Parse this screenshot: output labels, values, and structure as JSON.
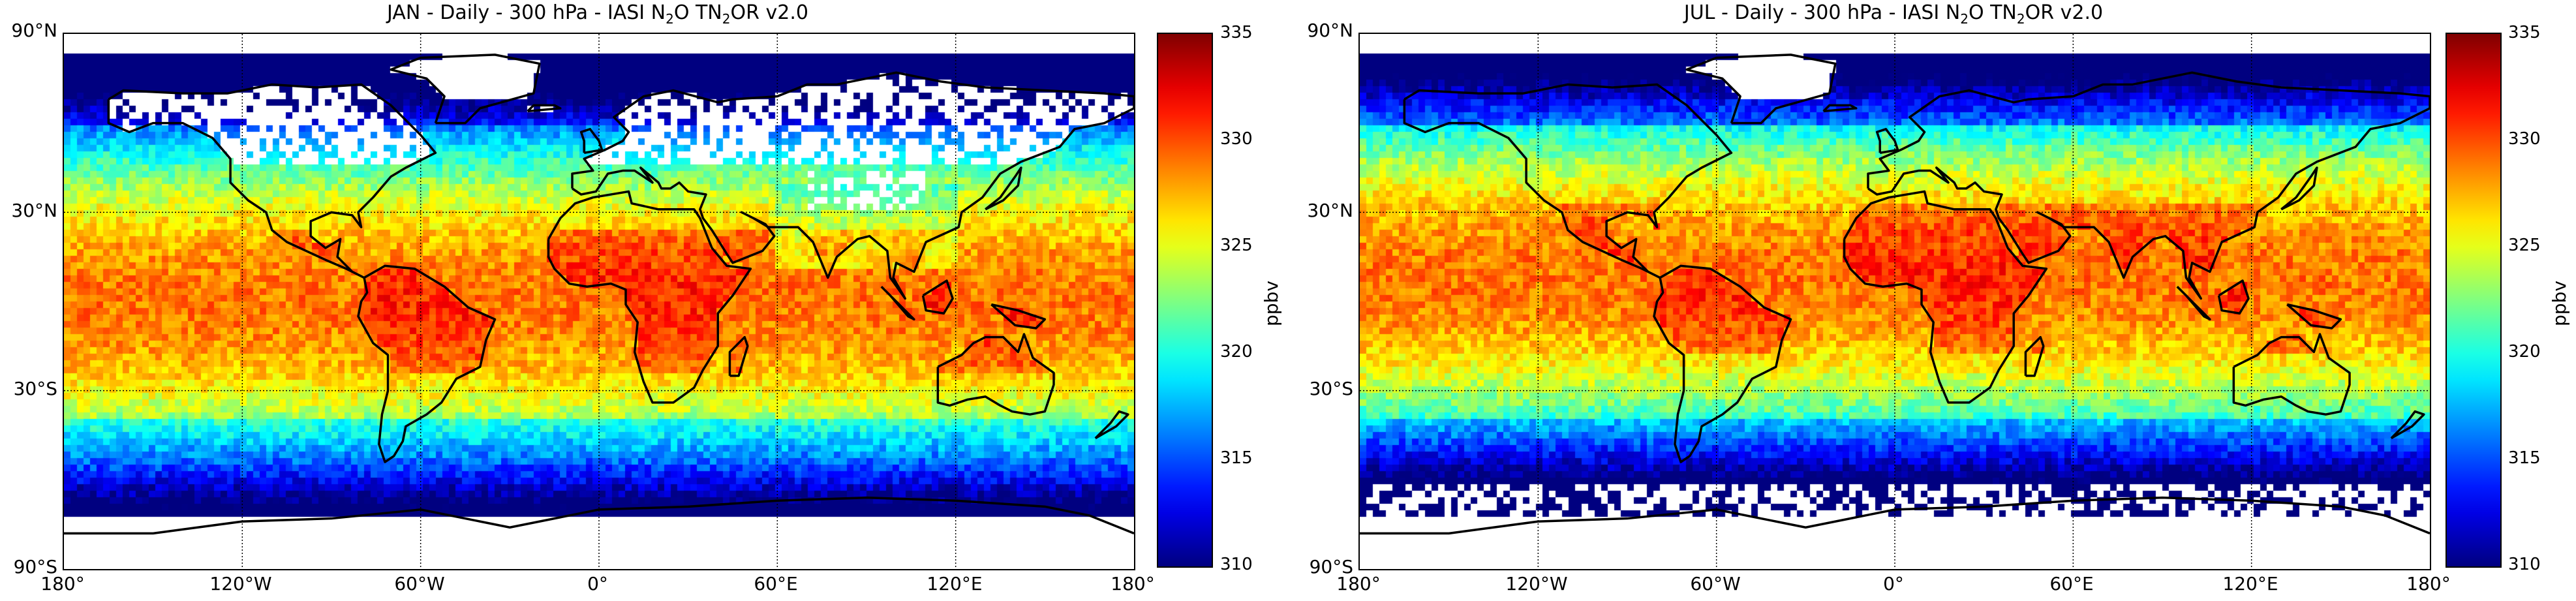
{
  "panels": [
    {
      "id": "jan",
      "title_main": "JAN - Daily - 300 hPa - IASI N",
      "title_sub1": "2",
      "title_mid": "O TN",
      "title_sub2": "2",
      "title_end": "OR v2.0",
      "lat_labels": [
        "90°N",
        "30°N",
        "30°S",
        "90°S"
      ],
      "lon_labels": [
        "180°",
        "120°W",
        "60°W",
        "0°",
        "60°E",
        "120°E",
        "180°"
      ],
      "colorbar": {
        "ticks": [
          "335",
          "330",
          "325",
          "320",
          "315",
          "310"
        ],
        "unit": "ppbv",
        "min": 310,
        "max": 335
      },
      "season": "north-winter"
    },
    {
      "id": "jul",
      "title_main": "JUL - Daily - 300 hPa - IASI N",
      "title_sub1": "2",
      "title_mid": "O TN",
      "title_sub2": "2",
      "title_end": "OR v2.0",
      "lat_labels": [
        "90°N",
        "30°N",
        "30°S",
        "90°S"
      ],
      "lon_labels": [
        "180°",
        "120°W",
        "60°W",
        "0°",
        "60°E",
        "120°E",
        "180°"
      ],
      "colorbar": {
        "ticks": [
          "335",
          "330",
          "325",
          "320",
          "315",
          "310"
        ],
        "unit": "ppbv",
        "min": 310,
        "max": 335
      },
      "season": "north-summer"
    }
  ]
}
